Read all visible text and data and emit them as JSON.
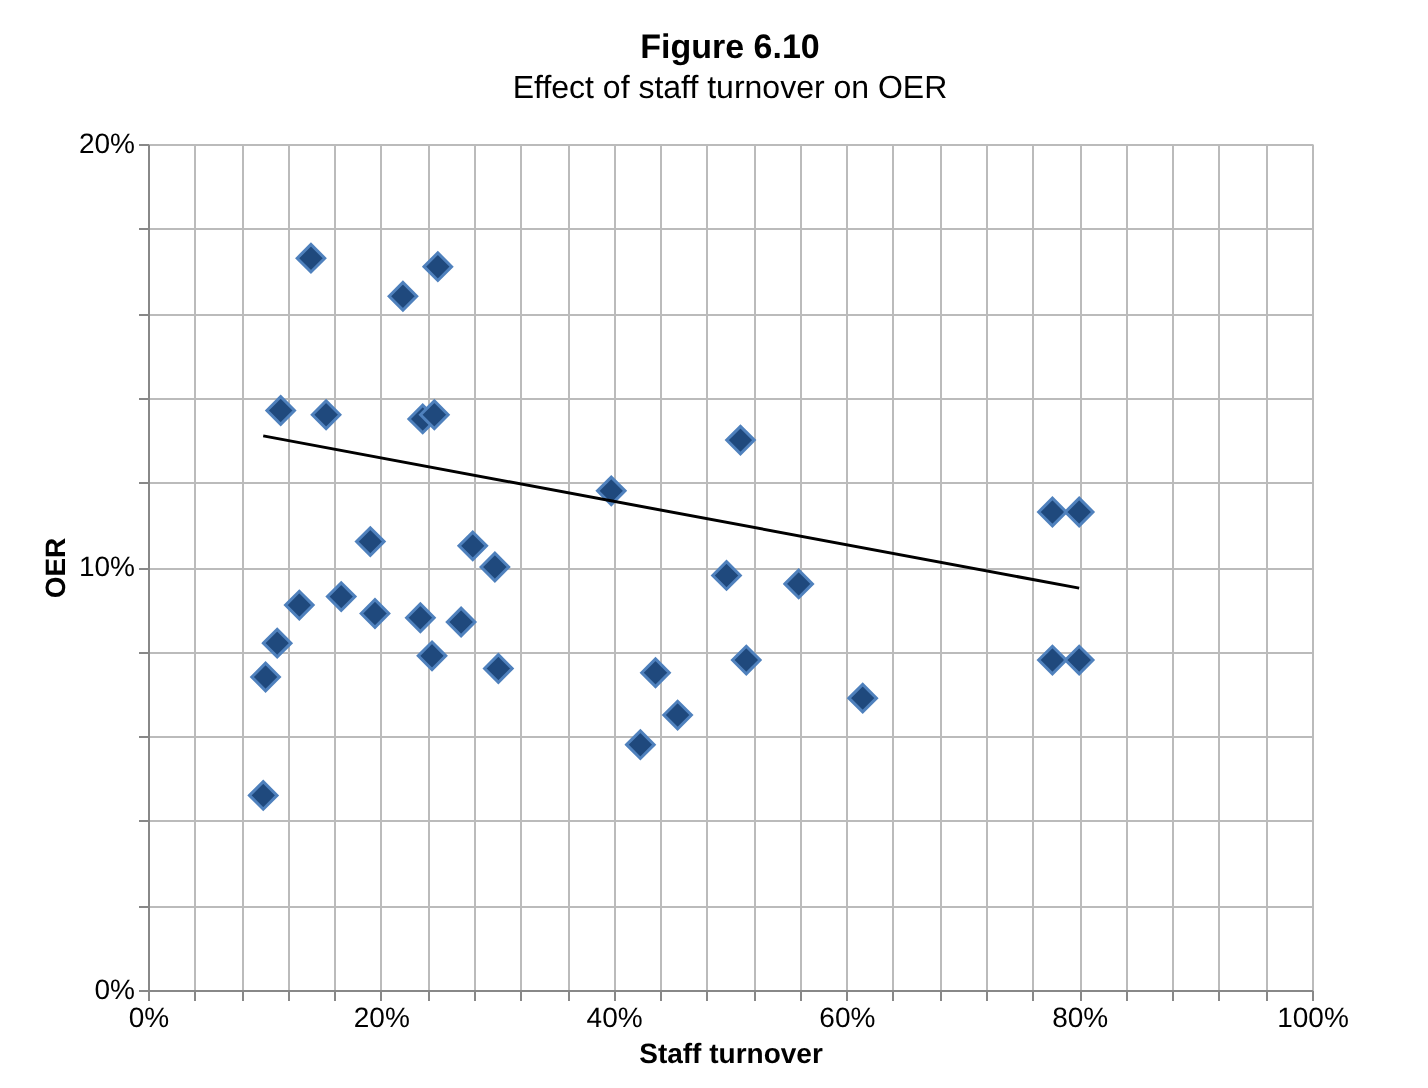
{
  "chart_data": {
    "type": "scatter",
    "title": "Figure 6.10",
    "subtitle": "Effect of staff turnover on OER",
    "xlabel": "Staff turnover",
    "ylabel": "OER",
    "xlim": [
      0,
      100
    ],
    "ylim": [
      0,
      20
    ],
    "xticks": [
      {
        "value": 0,
        "label": "0%"
      },
      {
        "value": 4,
        "label": null
      },
      {
        "value": 8,
        "label": null
      },
      {
        "value": 12,
        "label": null
      },
      {
        "value": 16,
        "label": null
      },
      {
        "value": 20,
        "label": "20%"
      },
      {
        "value": 24,
        "label": null
      },
      {
        "value": 28,
        "label": null
      },
      {
        "value": 32,
        "label": null
      },
      {
        "value": 36,
        "label": null
      },
      {
        "value": 40,
        "label": "40%"
      },
      {
        "value": 44,
        "label": null
      },
      {
        "value": 48,
        "label": null
      },
      {
        "value": 52,
        "label": null
      },
      {
        "value": 56,
        "label": null
      },
      {
        "value": 60,
        "label": "60%"
      },
      {
        "value": 64,
        "label": null
      },
      {
        "value": 68,
        "label": null
      },
      {
        "value": 72,
        "label": null
      },
      {
        "value": 76,
        "label": null
      },
      {
        "value": 80,
        "label": "80%"
      },
      {
        "value": 84,
        "label": null
      },
      {
        "value": 88,
        "label": null
      },
      {
        "value": 92,
        "label": null
      },
      {
        "value": 96,
        "label": null
      },
      {
        "value": 100,
        "label": "100%"
      }
    ],
    "yticks": [
      {
        "value": 0,
        "label": "0%"
      },
      {
        "value": 2,
        "label": null
      },
      {
        "value": 4,
        "label": null
      },
      {
        "value": 6,
        "label": null
      },
      {
        "value": 8,
        "label": null
      },
      {
        "value": 10,
        "label": "10%"
      },
      {
        "value": 12,
        "label": null
      },
      {
        "value": 14,
        "label": null
      },
      {
        "value": 16,
        "label": null
      },
      {
        "value": 18,
        "label": null
      },
      {
        "value": 20,
        "label": "20%"
      }
    ],
    "grid": true,
    "marker": "diamond",
    "series": [
      {
        "color": "#1f497d",
        "x": [
          14.0,
          21.9,
          24.9,
          11.4,
          15.3,
          23.6,
          24.6,
          39.8,
          19.1,
          27.9,
          29.8,
          13.0,
          16.6,
          19.5,
          23.4,
          26.9,
          11.1,
          24.4,
          30.1,
          10.1,
          9.9,
          43.6,
          45.5,
          42.3,
          50.9,
          49.7,
          55.9,
          51.4,
          61.4,
          77.7,
          80.0,
          77.7,
          80.0
        ],
        "values": [
          17.3,
          16.4,
          17.1,
          13.7,
          13.6,
          13.5,
          13.6,
          11.8,
          10.6,
          10.5,
          10.0,
          9.1,
          9.3,
          8.9,
          8.8,
          8.7,
          8.2,
          7.9,
          7.6,
          7.4,
          4.6,
          7.5,
          6.5,
          5.8,
          13.0,
          9.8,
          9.6,
          7.8,
          6.9,
          11.3,
          11.3,
          7.8,
          7.8
        ]
      },
      {
        "type": "line",
        "color": "#000000",
        "line_style": "solid",
        "marker": "none",
        "x": [
          9.9,
          80.0
        ],
        "values": [
          13.1,
          9.5
        ]
      }
    ]
  }
}
